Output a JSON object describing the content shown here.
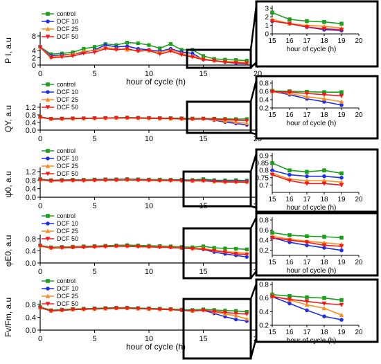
{
  "colors": {
    "control": "#1aa01a",
    "DCF 10": "#1f2ee8",
    "DCF 25": "#ff8c1a",
    "DCF 50": "#f01818"
  },
  "xlabel_main": "hour of cycle (h)",
  "xlabel_inset": "hour of cycle (h)",
  "chart_data": [
    {
      "type": "line",
      "panel": "PI",
      "ylabel": "P I, a.u",
      "legend": [
        "control",
        "DCF 10",
        "DCF 25",
        "DCF 50"
      ],
      "x": [
        0,
        1,
        2,
        3,
        4,
        5,
        6,
        7,
        8,
        9,
        10,
        11,
        12,
        13,
        14,
        15,
        16,
        17,
        18,
        19
      ],
      "xlim": [
        0,
        20
      ],
      "ylim": [
        0,
        8
      ],
      "xticks": [
        "0",
        "5",
        "10",
        "15",
        "20"
      ],
      "yticks": [
        "0",
        "2",
        "4",
        "8"
      ],
      "series": [
        {
          "name": "control",
          "marker": "square",
          "values": [
            5.0,
            3.0,
            3.2,
            3.5,
            4.5,
            5.0,
            5.8,
            5.5,
            6.2,
            6.0,
            5.5,
            4.6,
            5.8,
            4.2,
            4.2,
            2.5,
            1.7,
            1.5,
            1.4,
            1.2
          ]
        },
        {
          "name": "DCF 10",
          "marker": "circle",
          "values": [
            5.0,
            2.5,
            2.8,
            3.0,
            3.5,
            4.2,
            5.5,
            5.0,
            5.2,
            4.5,
            4.2,
            3.8,
            4.5,
            3.6,
            3.2,
            1.5,
            1.2,
            0.8,
            0.5,
            0.4
          ]
        },
        {
          "name": "DCF 25",
          "marker": "triangle-up",
          "values": [
            5.0,
            2.2,
            2.6,
            3.0,
            3.8,
            4.0,
            4.8,
            4.5,
            4.2,
            4.0,
            4.0,
            3.5,
            4.2,
            3.2,
            2.5,
            1.7,
            1.2,
            1.0,
            0.9,
            0.7
          ]
        },
        {
          "name": "DCF 50",
          "marker": "triangle-down",
          "values": [
            4.9,
            2.0,
            2.2,
            2.5,
            3.2,
            3.5,
            4.5,
            4.2,
            4.5,
            3.8,
            4.0,
            3.0,
            3.8,
            2.8,
            2.2,
            1.5,
            1.2,
            0.8,
            0.6,
            0.5
          ]
        }
      ],
      "inset": {
        "xlim": [
          15,
          20
        ],
        "ylim": [
          0,
          3
        ],
        "xticks": [
          "15",
          "16",
          "17",
          "18",
          "19",
          "20"
        ],
        "yticks": [
          "0",
          "1",
          "2",
          "3"
        ]
      }
    },
    {
      "type": "line",
      "panel": "QY",
      "ylabel": "QY, a.u",
      "legend": [
        "control",
        "DCF 10",
        "DCF 25",
        "DCF 50"
      ],
      "x": [
        0,
        1,
        2,
        3,
        4,
        5,
        6,
        7,
        8,
        9,
        10,
        11,
        12,
        13,
        14,
        15,
        16,
        17,
        18,
        19
      ],
      "xlim": [
        0,
        20
      ],
      "ylim": [
        0,
        1.2
      ],
      "xticks": [
        "0",
        "5",
        "10",
        "15",
        "20"
      ],
      "yticks": [
        "0.0",
        "0.4",
        "0.8",
        "1.2"
      ],
      "series": [
        {
          "name": "control",
          "marker": "square",
          "values": [
            0.7,
            0.6,
            0.61,
            0.62,
            0.62,
            0.63,
            0.64,
            0.65,
            0.66,
            0.65,
            0.64,
            0.63,
            0.63,
            0.62,
            0.61,
            0.61,
            0.6,
            0.59,
            0.58,
            0.58
          ]
        },
        {
          "name": "DCF 10",
          "marker": "circle",
          "values": [
            0.68,
            0.58,
            0.59,
            0.6,
            0.61,
            0.62,
            0.63,
            0.64,
            0.64,
            0.63,
            0.62,
            0.61,
            0.6,
            0.59,
            0.58,
            0.6,
            0.52,
            0.42,
            0.35,
            0.27
          ]
        },
        {
          "name": "DCF 25",
          "marker": "triangle-up",
          "values": [
            0.68,
            0.58,
            0.59,
            0.6,
            0.61,
            0.62,
            0.63,
            0.64,
            0.64,
            0.63,
            0.62,
            0.61,
            0.6,
            0.59,
            0.58,
            0.6,
            0.55,
            0.47,
            0.42,
            0.35
          ]
        },
        {
          "name": "DCF 50",
          "marker": "triangle-down",
          "values": [
            0.68,
            0.58,
            0.59,
            0.6,
            0.61,
            0.62,
            0.63,
            0.64,
            0.64,
            0.63,
            0.62,
            0.61,
            0.6,
            0.59,
            0.58,
            0.59,
            0.58,
            0.55,
            0.52,
            0.49
          ]
        }
      ],
      "inset": {
        "xlim": [
          15,
          20
        ],
        "ylim": [
          0.2,
          0.8
        ],
        "xticks": [
          "15",
          "16",
          "17",
          "18",
          "19",
          "20"
        ],
        "yticks": [
          "0.2",
          "0.4",
          "0.6",
          "0.8"
        ]
      }
    },
    {
      "type": "line",
      "panel": "psi0",
      "ylabel": "ψ0, a.u",
      "legend": [
        "control",
        "DCF 10",
        "DCF 25",
        "DCF 50"
      ],
      "x": [
        0,
        1,
        2,
        3,
        4,
        5,
        6,
        7,
        8,
        9,
        10,
        11,
        12,
        13,
        14,
        15,
        16,
        17,
        18,
        19
      ],
      "xlim": [
        0,
        20
      ],
      "ylim": [
        0,
        1.2
      ],
      "xticks": [
        "0",
        "5",
        "10",
        "15",
        "20"
      ],
      "yticks": [
        "0.0",
        "0.4",
        "0.8",
        "1.2"
      ],
      "series": [
        {
          "name": "control",
          "marker": "square",
          "values": [
            0.85,
            0.8,
            0.81,
            0.82,
            0.82,
            0.83,
            0.84,
            0.84,
            0.85,
            0.84,
            0.83,
            0.83,
            0.82,
            0.82,
            0.81,
            0.85,
            0.8,
            0.79,
            0.8,
            0.78
          ]
        },
        {
          "name": "DCF 10",
          "marker": "circle",
          "values": [
            0.83,
            0.78,
            0.79,
            0.8,
            0.8,
            0.81,
            0.82,
            0.82,
            0.83,
            0.82,
            0.81,
            0.8,
            0.8,
            0.79,
            0.78,
            0.8,
            0.77,
            0.76,
            0.76,
            0.75
          ]
        },
        {
          "name": "DCF 25",
          "marker": "triangle-up",
          "values": [
            0.82,
            0.77,
            0.78,
            0.79,
            0.79,
            0.8,
            0.81,
            0.81,
            0.82,
            0.81,
            0.8,
            0.79,
            0.79,
            0.78,
            0.77,
            0.78,
            0.74,
            0.73,
            0.73,
            0.72
          ]
        },
        {
          "name": "DCF 50",
          "marker": "triangle-down",
          "values": [
            0.81,
            0.76,
            0.77,
            0.78,
            0.78,
            0.79,
            0.8,
            0.8,
            0.81,
            0.8,
            0.79,
            0.78,
            0.78,
            0.77,
            0.76,
            0.77,
            0.73,
            0.71,
            0.71,
            0.7
          ]
        }
      ],
      "inset": {
        "xlim": [
          15,
          20
        ],
        "ylim": [
          0.65,
          0.9
        ],
        "xticks": [
          "15",
          "16",
          "17",
          "18",
          "19",
          "20"
        ],
        "yticks": [
          "0.7",
          "0.75",
          "0.8",
          "0.85",
          "0.9"
        ]
      }
    },
    {
      "type": "line",
      "panel": "phiE0",
      "ylabel": "φE0, a.u",
      "legend": [
        "control",
        "DCF 10",
        "DCF 25",
        "DCF 50"
      ],
      "x": [
        0,
        1,
        2,
        3,
        4,
        5,
        6,
        7,
        8,
        9,
        10,
        11,
        12,
        13,
        14,
        15,
        16,
        17,
        18,
        19
      ],
      "xlim": [
        0,
        20
      ],
      "ylim": [
        0,
        0.8
      ],
      "xticks": [
        "0",
        "5",
        "10",
        "15",
        "20"
      ],
      "yticks": [
        "0.0",
        "0.4",
        "0.8"
      ],
      "series": [
        {
          "name": "control",
          "marker": "square",
          "values": [
            0.58,
            0.52,
            0.53,
            0.54,
            0.55,
            0.56,
            0.57,
            0.58,
            0.59,
            0.58,
            0.57,
            0.56,
            0.55,
            0.53,
            0.52,
            0.55,
            0.5,
            0.48,
            0.47,
            0.45
          ]
        },
        {
          "name": "DCF 10",
          "marker": "circle",
          "values": [
            0.57,
            0.5,
            0.51,
            0.52,
            0.53,
            0.54,
            0.55,
            0.56,
            0.56,
            0.55,
            0.54,
            0.53,
            0.52,
            0.5,
            0.48,
            0.45,
            0.36,
            0.3,
            0.25,
            0.2
          ]
        },
        {
          "name": "DCF 25",
          "marker": "triangle-up",
          "values": [
            0.57,
            0.5,
            0.51,
            0.52,
            0.53,
            0.54,
            0.55,
            0.56,
            0.56,
            0.55,
            0.54,
            0.53,
            0.52,
            0.5,
            0.48,
            0.48,
            0.42,
            0.38,
            0.35,
            0.32
          ]
        },
        {
          "name": "DCF 50",
          "marker": "triangle-down",
          "values": [
            0.56,
            0.49,
            0.5,
            0.51,
            0.52,
            0.53,
            0.54,
            0.55,
            0.55,
            0.54,
            0.53,
            0.52,
            0.51,
            0.49,
            0.47,
            0.45,
            0.4,
            0.36,
            0.3,
            0.28
          ]
        }
      ],
      "inset": {
        "xlim": [
          15,
          20
        ],
        "ylim": [
          0.1,
          0.8
        ],
        "xticks": [
          "15",
          "16",
          "17",
          "18",
          "19",
          "20"
        ],
        "yticks": [
          "0.2",
          "0.4",
          "0.6",
          "0.8"
        ]
      }
    },
    {
      "type": "line",
      "panel": "FvFm",
      "ylabel": "Fv/Fm, a.u",
      "legend": [
        "control",
        "DCF 10",
        "DCF 25",
        "DCF 50"
      ],
      "x": [
        0,
        1,
        2,
        3,
        4,
        5,
        6,
        7,
        8,
        9,
        10,
        11,
        12,
        13,
        14,
        15,
        16,
        17,
        18,
        19
      ],
      "xlim": [
        0,
        20
      ],
      "ylim": [
        0,
        0.8
      ],
      "xticks": [
        "0",
        "5",
        "10",
        "15",
        "20"
      ],
      "yticks": [
        "0.0",
        "0.4",
        "0.8"
      ],
      "series": [
        {
          "name": "control",
          "marker": "square",
          "values": [
            0.72,
            0.62,
            0.64,
            0.66,
            0.67,
            0.68,
            0.69,
            0.7,
            0.7,
            0.69,
            0.68,
            0.67,
            0.66,
            0.64,
            0.63,
            0.65,
            0.63,
            0.61,
            0.6,
            0.57
          ]
        },
        {
          "name": "DCF 10",
          "marker": "circle",
          "values": [
            0.7,
            0.6,
            0.62,
            0.64,
            0.65,
            0.66,
            0.67,
            0.68,
            0.68,
            0.67,
            0.66,
            0.65,
            0.64,
            0.62,
            0.6,
            0.62,
            0.52,
            0.42,
            0.33,
            0.28
          ]
        },
        {
          "name": "DCF 25",
          "marker": "triangle-up",
          "values": [
            0.7,
            0.6,
            0.62,
            0.64,
            0.65,
            0.66,
            0.67,
            0.68,
            0.68,
            0.67,
            0.66,
            0.65,
            0.64,
            0.62,
            0.6,
            0.63,
            0.57,
            0.5,
            0.45,
            0.35
          ]
        },
        {
          "name": "DCF 50",
          "marker": "triangle-down",
          "values": [
            0.7,
            0.6,
            0.62,
            0.64,
            0.65,
            0.66,
            0.67,
            0.68,
            0.68,
            0.67,
            0.66,
            0.65,
            0.64,
            0.62,
            0.6,
            0.62,
            0.58,
            0.55,
            0.52,
            0.5
          ]
        }
      ],
      "inset": {
        "xlim": [
          15,
          20
        ],
        "ylim": [
          0.2,
          0.8
        ],
        "xticks": [
          "15",
          "16",
          "17",
          "18",
          "19",
          "20"
        ],
        "yticks": [
          "0.2",
          "0.4",
          "0.6",
          "0.8"
        ]
      }
    }
  ]
}
